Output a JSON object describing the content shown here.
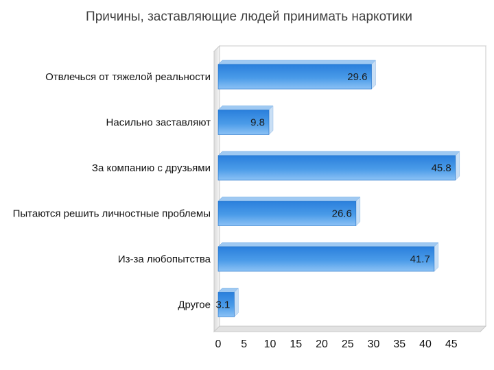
{
  "chart_data": {
    "type": "bar",
    "orientation": "horizontal",
    "title": "Причины, заставляющие людей принимать наркотики",
    "categories": [
      "Отвлечься от тяжелой реальности",
      "Насильно заставляют",
      "За компанию с друзьями",
      "Пытаются решить личностные проблемы",
      "Из-за любопытства",
      "Другое"
    ],
    "values": [
      29.6,
      9.8,
      45.8,
      26.6,
      41.7,
      3.1
    ],
    "data_labels": [
      "29.6",
      "9.8",
      "45.8",
      "26.6",
      "41.7",
      "3.1"
    ],
    "xlim": [
      0,
      50
    ],
    "xticks": [
      "0",
      "5",
      "10",
      "15",
      "20",
      "25",
      "30",
      "35",
      "40",
      "45"
    ],
    "grid": false,
    "legend": "none",
    "bar_color": "#2f86e0",
    "bar_color_light": "#8cc2f5",
    "style": "3d"
  }
}
